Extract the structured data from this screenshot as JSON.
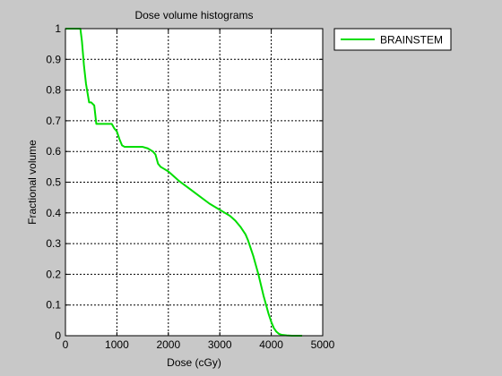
{
  "chart_data": {
    "type": "line",
    "title": "Dose volume histograms",
    "xlabel": "Dose (cGy)",
    "ylabel": "Fractional volume",
    "xlim": [
      0,
      5000
    ],
    "ylim": [
      0,
      1
    ],
    "xticks": [
      0,
      1000,
      2000,
      3000,
      4000,
      5000
    ],
    "yticks": [
      0,
      0.1,
      0.2,
      0.3,
      0.4,
      0.5,
      0.6,
      0.7,
      0.8,
      0.9,
      1
    ],
    "grid": true,
    "legend_position": "outside-top-right",
    "series": [
      {
        "name": "BRAINSTEM",
        "color": "#00dd00",
        "x": [
          0,
          290,
          320,
          360,
          400,
          430,
          460,
          500,
          560,
          600,
          650,
          700,
          800,
          900,
          950,
          1000,
          1050,
          1100,
          1150,
          1200,
          1300,
          1400,
          1500,
          1600,
          1700,
          1750,
          1800,
          1850,
          1900,
          2000,
          2100,
          2200,
          2400,
          2600,
          2800,
          3000,
          3100,
          3200,
          3300,
          3400,
          3500,
          3550,
          3600,
          3650,
          3700,
          3750,
          3800,
          3850,
          3900,
          3950,
          4000,
          4050,
          4100,
          4150,
          4200,
          4300,
          4400,
          4500,
          4600
        ],
        "y": [
          1.0,
          1.0,
          0.96,
          0.88,
          0.82,
          0.79,
          0.76,
          0.76,
          0.75,
          0.69,
          0.69,
          0.69,
          0.69,
          0.69,
          0.675,
          0.665,
          0.64,
          0.62,
          0.615,
          0.615,
          0.615,
          0.615,
          0.615,
          0.61,
          0.6,
          0.59,
          0.56,
          0.55,
          0.545,
          0.535,
          0.52,
          0.505,
          0.48,
          0.455,
          0.43,
          0.41,
          0.4,
          0.39,
          0.375,
          0.355,
          0.33,
          0.31,
          0.285,
          0.26,
          0.23,
          0.2,
          0.165,
          0.13,
          0.1,
          0.07,
          0.045,
          0.025,
          0.013,
          0.006,
          0.003,
          0.001,
          0.0,
          0.0,
          0.0
        ]
      }
    ]
  }
}
